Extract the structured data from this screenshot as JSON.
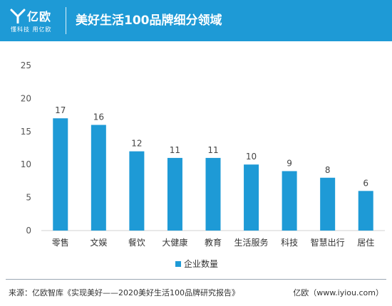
{
  "header": {
    "logo_name": "亿欧",
    "logo_slogan": "懂科技 用亿欧",
    "title": "美好生活100品牌细分领域"
  },
  "chart_data": {
    "type": "bar",
    "title": "",
    "xlabel": "",
    "ylabel": "",
    "categories": [
      "零售",
      "文娱",
      "餐饮",
      "大健康",
      "教育",
      "生活服务",
      "科技",
      "智慧出行",
      "居住"
    ],
    "series": [
      {
        "name": "企业数量",
        "values": [
          17,
          16,
          12,
          11,
          11,
          10,
          9,
          8,
          6
        ]
      }
    ],
    "ylim": [
      0,
      25
    ],
    "yticks": [
      "0",
      "5",
      "10",
      "15",
      "20",
      "25"
    ],
    "grid": false,
    "legend_position": "bottom-left",
    "bar_color": "#1e9ad6"
  },
  "footer": {
    "source": "来源：亿欧智库《实现美好——2020美好生活100品牌研究报告》",
    "brand": "亿欧（www.iyiou.com）"
  },
  "colors": {
    "brand": "#1e9ad6"
  }
}
